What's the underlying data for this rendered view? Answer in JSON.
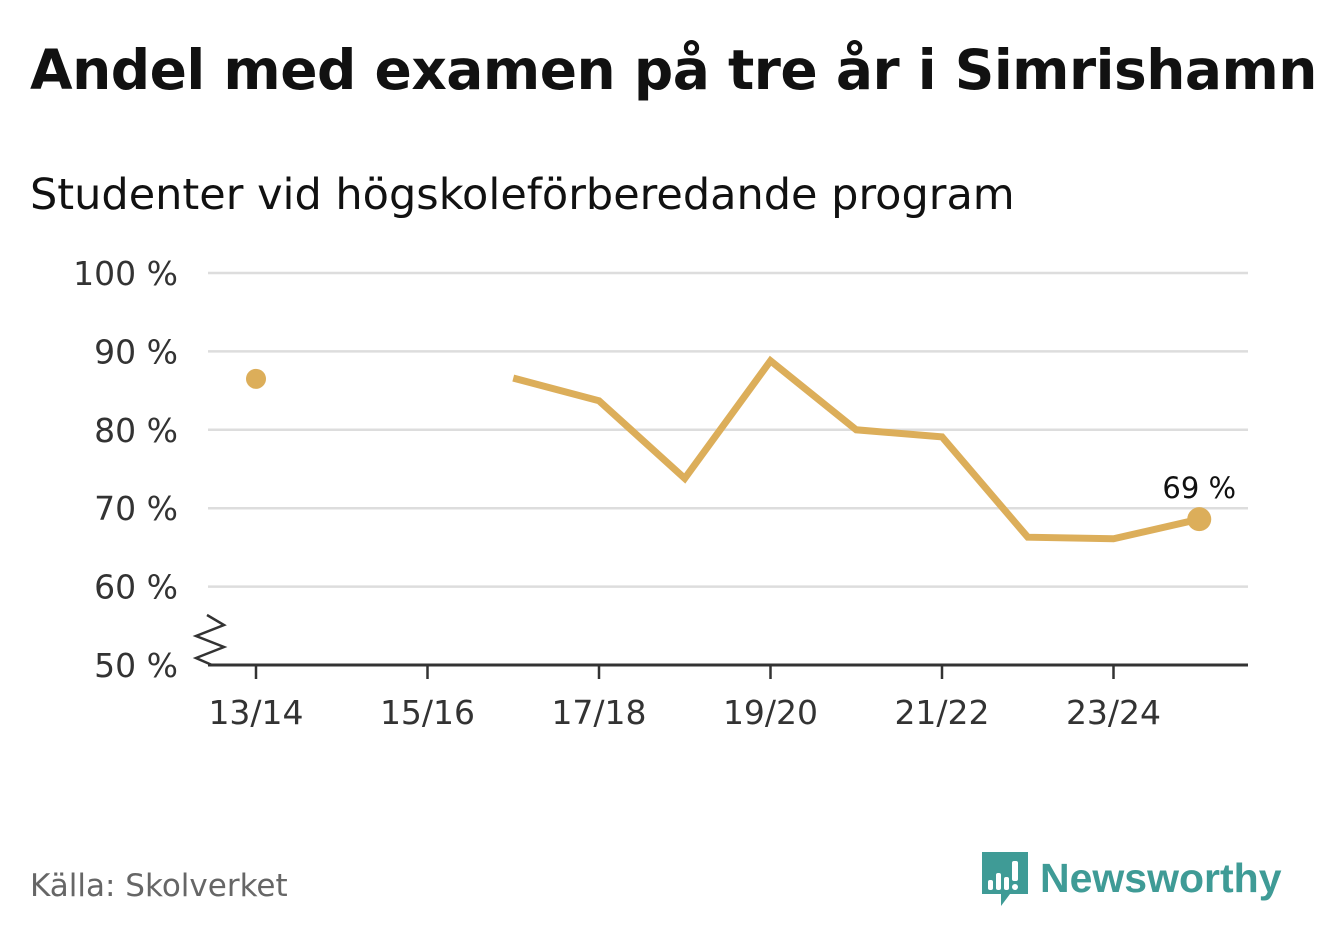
{
  "title": "Andel med examen på tre år i Simrishamn",
  "subtitle": "Studenter vid högskoleförberedande program",
  "source": "Källa: Skolverket",
  "brand": "Newsworthy",
  "colors": {
    "line": "#dcae5a",
    "grid": "#dddddd",
    "axis": "#333333",
    "brand": "#3f9b96"
  },
  "chart_data": {
    "type": "line",
    "title": "Andel med examen på tre år i Simrishamn",
    "subtitle": "Studenter vid högskoleförberedande program",
    "xlabel": "",
    "ylabel": "",
    "ylim": [
      50,
      100
    ],
    "y_ticks": [
      50,
      60,
      70,
      80,
      90,
      100
    ],
    "y_tick_labels": [
      "50 %",
      "60 %",
      "70 %",
      "80 %",
      "90 %",
      "100 %"
    ],
    "x_ticks": [
      "13/14",
      "15/16",
      "17/18",
      "19/20",
      "21/22",
      "23/24"
    ],
    "categories": [
      "13/14",
      "14/15",
      "15/16",
      "16/17",
      "17/18",
      "18/19",
      "19/20",
      "20/21",
      "21/22",
      "22/23",
      "23/24",
      "24/25"
    ],
    "series": [
      {
        "name": "Andel med examen",
        "values": [
          86.5,
          null,
          null,
          86.6,
          83.7,
          73.8,
          88.8,
          80.0,
          79.1,
          66.3,
          66.1,
          68.6
        ]
      }
    ],
    "last_value_label": "69 %",
    "axis_break": true,
    "grid": true
  }
}
